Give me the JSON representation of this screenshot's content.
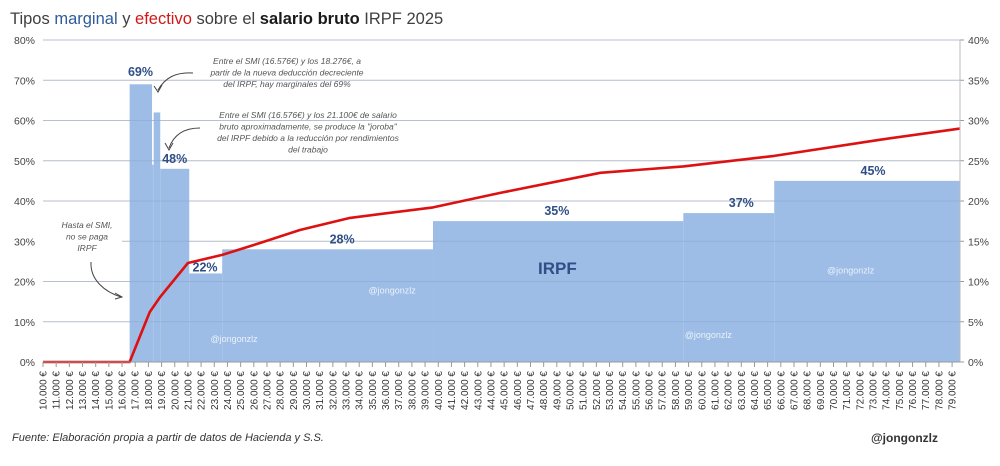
{
  "title": {
    "parts": [
      {
        "text": "Tipos ",
        "color": "#404040",
        "bold": false
      },
      {
        "text": "marginal",
        "color": "#2e5c9a",
        "bold": false
      },
      {
        "text": " y ",
        "color": "#404040",
        "bold": false
      },
      {
        "text": "efectivo",
        "color": "#d01818",
        "bold": false
      },
      {
        "text": " sobre el ",
        "color": "#404040",
        "bold": false
      },
      {
        "text": "salario bruto",
        "color": "#1a1a1a",
        "bold": true
      },
      {
        "text": " IRPF 2025",
        "color": "#404040",
        "bold": false
      }
    ]
  },
  "chart_data": {
    "type": "area+line",
    "x_ticks": [
      "10.000 €",
      "11.000 €",
      "12.000 €",
      "13.000 €",
      "14.000 €",
      "15.000 €",
      "16.000 €",
      "17.000 €",
      "18.000 €",
      "19.000 €",
      "20.000 €",
      "21.000 €",
      "22.000 €",
      "23.000 €",
      "24.000 €",
      "25.000 €",
      "26.000 €",
      "27.000 €",
      "28.000 €",
      "29.000 €",
      "30.000 €",
      "31.000 €",
      "32.000 €",
      "33.000 €",
      "34.000 €",
      "35.000 €",
      "36.000 €",
      "37.000 €",
      "38.000 €",
      "39.000 €",
      "40.000 €",
      "41.000 €",
      "42.000 €",
      "43.000 €",
      "44.000 €",
      "45.000 €",
      "46.000 €",
      "47.000 €",
      "48.000 €",
      "49.000 €",
      "50.000 €",
      "51.000 €",
      "52.000 €",
      "53.000 €",
      "54.000 €",
      "55.000 €",
      "56.000 €",
      "57.000 €",
      "58.000 €",
      "59.000 €",
      "60.000 €",
      "61.000 €",
      "62.000 €",
      "63.000 €",
      "64.000 €",
      "65.000 €",
      "66.000 €",
      "67.000 €",
      "68.000 €",
      "69.000 €",
      "70.000 €",
      "71.000 €",
      "72.000 €",
      "73.000 €",
      "74.000 €",
      "75.000 €",
      "76.000 €",
      "77.000 €",
      "78.000 €",
      "79.000 €"
    ],
    "x_range": [
      10000,
      79600
    ],
    "left_axis": {
      "ticks": [
        "0%",
        "10%",
        "20%",
        "30%",
        "40%",
        "50%",
        "60%",
        "70%",
        "80%"
      ],
      "range": [
        0,
        80
      ]
    },
    "right_axis": {
      "ticks": [
        "0%",
        "5%",
        "10%",
        "15%",
        "20%",
        "25%",
        "30%",
        "35%",
        "40%"
      ],
      "range": [
        0,
        40
      ]
    },
    "grid": true,
    "series": [
      {
        "type": "step-area",
        "axis": "left",
        "color": "#9dbde6",
        "steps": [
          {
            "from": 10000,
            "to": 16576,
            "value": 0
          },
          {
            "from": 16576,
            "to": 18276,
            "value": 69
          },
          {
            "from": 18276,
            "to": 18400,
            "value": 49
          },
          {
            "from": 18400,
            "to": 18900,
            "value": 62
          },
          {
            "from": 18900,
            "to": 21100,
            "value": 48
          },
          {
            "from": 21100,
            "to": 23600,
            "value": 22
          },
          {
            "from": 23600,
            "to": 39600,
            "value": 28
          },
          {
            "from": 39600,
            "to": 58600,
            "value": 35
          },
          {
            "from": 58600,
            "to": 65500,
            "value": 37
          },
          {
            "from": 65500,
            "to": 79600,
            "value": 45
          }
        ]
      },
      {
        "type": "line",
        "axis": "right",
        "color": "#dd1111",
        "points": [
          [
            10000,
            0
          ],
          [
            16576,
            0
          ],
          [
            18100,
            6.2
          ],
          [
            18900,
            8.1
          ],
          [
            21000,
            12.3
          ],
          [
            23600,
            13.3
          ],
          [
            26500,
            14.8
          ],
          [
            29500,
            16.4
          ],
          [
            33300,
            17.9
          ],
          [
            39600,
            19.2
          ],
          [
            44700,
            21.0
          ],
          [
            52300,
            23.5
          ],
          [
            58600,
            24.3
          ],
          [
            65500,
            25.6
          ],
          [
            73500,
            27.6
          ],
          [
            79600,
            29.0
          ]
        ]
      }
    ],
    "data_labels": [
      {
        "text": "69%",
        "x": 17400,
        "y": 71
      },
      {
        "text": "48%",
        "x": 20000,
        "y": 49.5
      },
      {
        "text": "22%",
        "x": 22300,
        "y": 22.5
      },
      {
        "text": "28%",
        "x": 32700,
        "y": 29.5
      },
      {
        "text": "35%",
        "x": 49000,
        "y": 36.5
      },
      {
        "text": "37%",
        "x": 63000,
        "y": 38.5
      },
      {
        "text": "45%",
        "x": 73000,
        "y": 46.5
      }
    ],
    "series_label": "IRPF",
    "annotations": [
      {
        "lines": [
          "Entre el SMI (16.576€) y los 18.276€, a",
          "partir de la nueva deducción decreciente",
          "del IRPF, hay marginales del 69%"
        ]
      },
      {
        "lines": [
          "Entre el SMI (16.576€) y los 21.100€ de salario",
          "bruto aproximadamente, se produce la \"joroba\"",
          "del IRPF debido a la reducción por rendimientos",
          "del trabajo"
        ]
      },
      {
        "lines": [
          "Hasta el SMI,",
          "no se paga",
          "IRPF"
        ]
      }
    ],
    "watermark": "@jongonzlz"
  },
  "footer": {
    "source": "Fuente: Elaboración propia a partir de datos de Hacienda y S.S.",
    "handle": "@jongonzlz"
  }
}
